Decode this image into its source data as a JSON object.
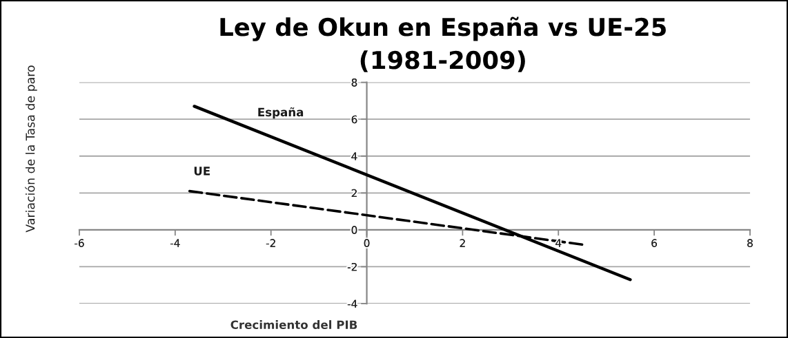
{
  "chart_data": {
    "type": "line",
    "title": "Ley de Okun en España vs UE-25\n(1981-2009)",
    "xlabel": "Crecimiento del PIB",
    "ylabel": "Variación de la Tasa de paro",
    "xlim": [
      -6,
      8
    ],
    "ylim": [
      -4,
      8
    ],
    "xticks": [
      -6,
      -4,
      -2,
      0,
      2,
      4,
      6,
      8
    ],
    "yticks": [
      -4,
      -2,
      0,
      2,
      4,
      6,
      8
    ],
    "grid": "y",
    "series": [
      {
        "name": "España",
        "color": "#000000",
        "line_style": "solid",
        "x": [
          -3.6,
          5.5
        ],
        "values": [
          6.7,
          -2.7
        ]
      },
      {
        "name": "UE",
        "color": "#000000",
        "line_style": "dashed",
        "x": [
          -3.7,
          4.5
        ],
        "values": [
          2.1,
          -0.8
        ]
      }
    ]
  }
}
